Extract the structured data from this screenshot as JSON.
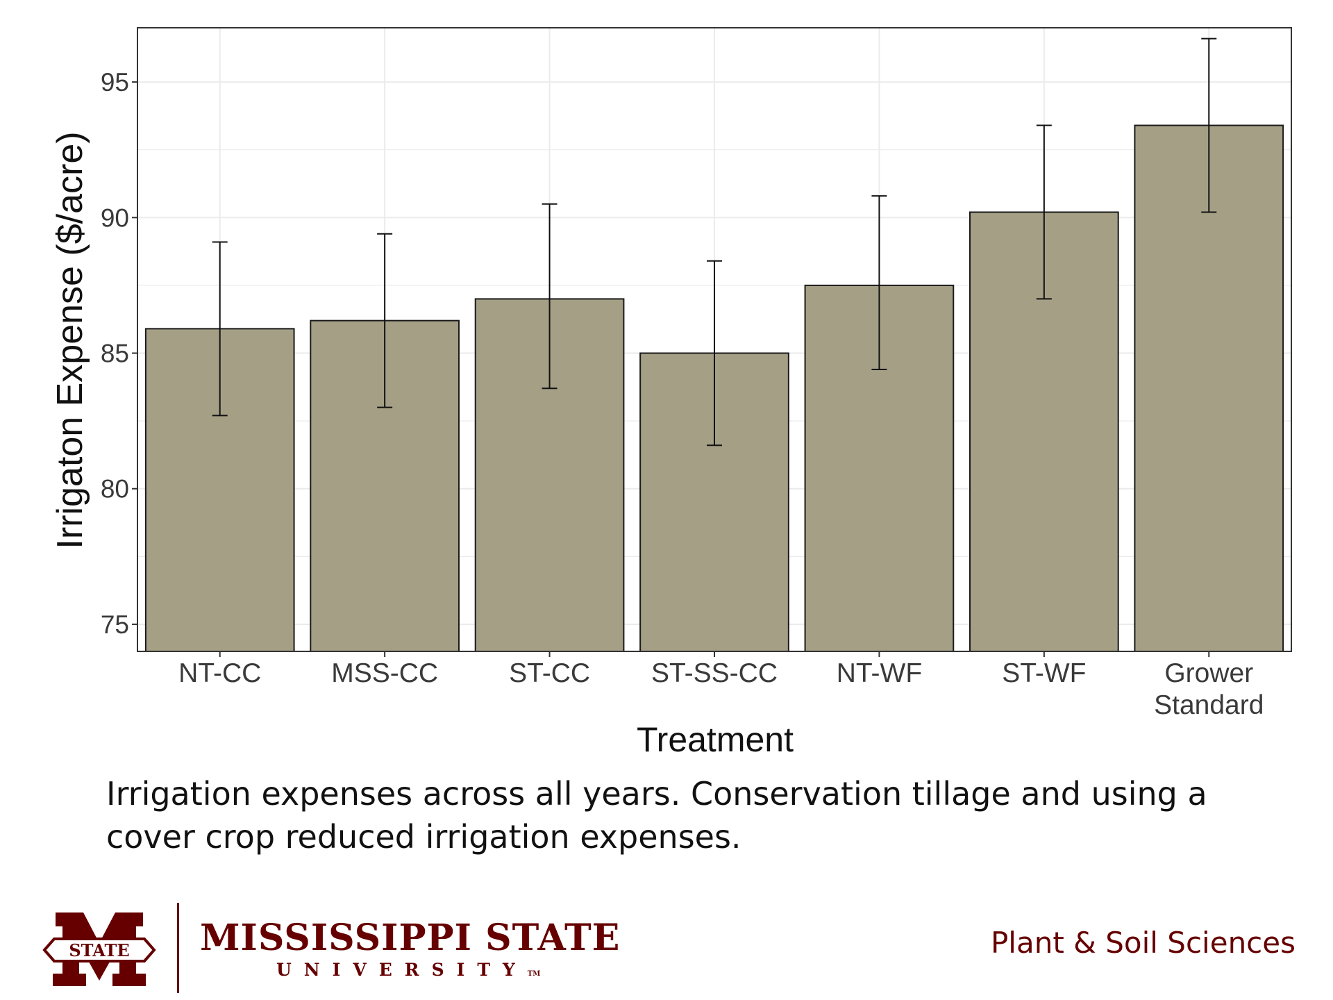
{
  "chart_data": {
    "type": "bar",
    "title": "",
    "xlabel": "Treatment",
    "ylabel": "Irrigaton Expense ($/acre)",
    "ylim": [
      74,
      97
    ],
    "yticks": [
      75,
      80,
      85,
      90,
      95
    ],
    "grid": true,
    "categories": [
      [
        "NT-CC"
      ],
      [
        "MSS-CC"
      ],
      [
        "ST-CC"
      ],
      [
        "ST-SS-CC"
      ],
      [
        "NT-WF"
      ],
      [
        "ST-WF"
      ],
      [
        "Grower",
        "Standard"
      ]
    ],
    "values": [
      85.9,
      86.2,
      87.0,
      85.0,
      87.5,
      90.2,
      93.4
    ],
    "error_low": [
      82.7,
      83.0,
      83.7,
      81.6,
      84.4,
      87.0,
      90.2
    ],
    "error_high": [
      89.1,
      89.4,
      90.5,
      88.4,
      90.8,
      93.4,
      96.6
    ]
  },
  "colors": {
    "bar_fill": "#a59f86",
    "bar_stroke": "#1a1a1a",
    "grid": "#ebebeb",
    "panel_border": "#333333",
    "brand": "#660000"
  },
  "caption": {
    "line1": "Irrigation expenses across all years. Conservation tillage and using a",
    "line2": "cover crop reduced irrigation expenses."
  },
  "footer": {
    "university_name": "MISSISSIPPI STATE",
    "university_sub": "UNIVERSITY",
    "trademark": "TM",
    "logo_text": "STATE",
    "department": "Plant & Soil Sciences"
  }
}
